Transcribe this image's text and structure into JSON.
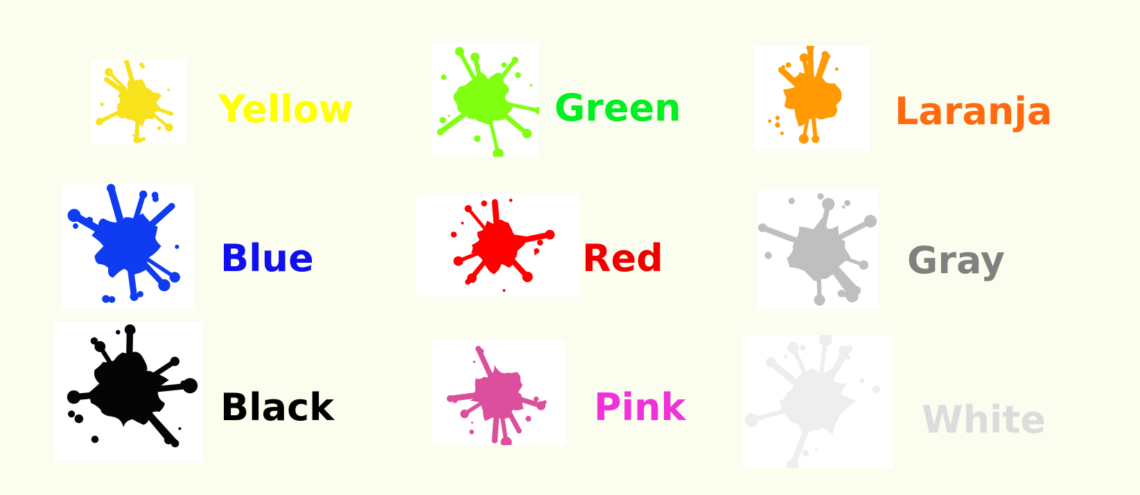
{
  "page": {
    "background": "#fbfdee"
  },
  "items": [
    {
      "id": "yellow",
      "label": "Yellow",
      "color": "#ffff00",
      "splash": "#f7e21c",
      "icon": "yellow-splash-icon"
    },
    {
      "id": "green",
      "label": "Green",
      "color": "#00ee22",
      "splash": "#80ff10",
      "icon": "green-splash-icon"
    },
    {
      "id": "orange",
      "label": "Laranja",
      "color": "#ff6a10",
      "splash": "#ff9a05",
      "icon": "orange-splash-icon"
    },
    {
      "id": "blue",
      "label": "Blue",
      "color": "#1010ee",
      "splash": "#0f3cf0",
      "icon": "blue-splash-icon"
    },
    {
      "id": "red",
      "label": "Red",
      "color": "#ee0000",
      "splash": "#ff0000",
      "icon": "red-splash-icon"
    },
    {
      "id": "gray",
      "label": "Gray",
      "color": "#808080",
      "splash": "#bfbfbf",
      "icon": "gray-splash-icon"
    },
    {
      "id": "black",
      "label": "Black",
      "color": "#000000",
      "splash": "#050505",
      "icon": "black-splash-icon"
    },
    {
      "id": "pink",
      "label": "Pink",
      "color": "#f030d8",
      "splash": "#db4f9c",
      "icon": "pink-splash-icon"
    },
    {
      "id": "white",
      "label": "White",
      "color": "#dcdcdc",
      "splash": "#eeeeee",
      "icon": "white-splash-icon"
    }
  ]
}
